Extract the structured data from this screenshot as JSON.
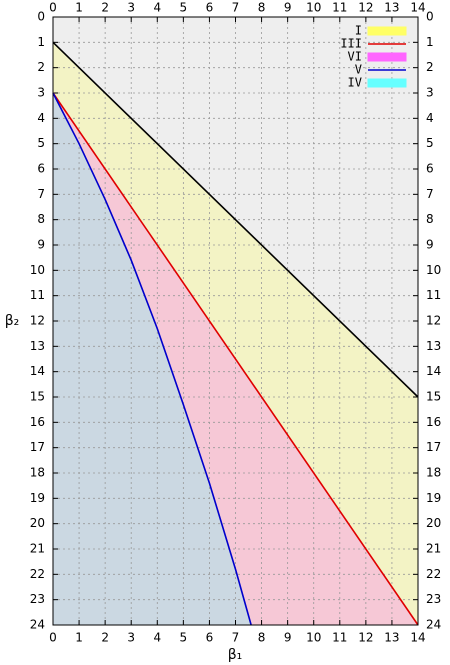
{
  "chart_data": {
    "type": "area",
    "xlabel": "β₁",
    "ylabel": "β₂",
    "xlim": [
      0,
      14
    ],
    "ylim": [
      24,
      0
    ],
    "xticks": [
      0,
      1,
      2,
      3,
      4,
      5,
      6,
      7,
      8,
      9,
      10,
      11,
      12,
      13,
      14
    ],
    "yticks": [
      0,
      1,
      2,
      3,
      4,
      5,
      6,
      7,
      8,
      9,
      10,
      11,
      12,
      13,
      14,
      15,
      16,
      17,
      18,
      19,
      20,
      21,
      22,
      23,
      24
    ],
    "grid": true,
    "background": "#eeeeee",
    "legend": "top-right",
    "series": [
      {
        "name": "I",
        "kind": "fill",
        "color": "#ffff66",
        "line_color": "#000000",
        "x": [
          0,
          14
        ],
        "values": [
          1,
          15
        ]
      },
      {
        "name": "III",
        "kind": "line",
        "color": "#e00000",
        "x": [
          0,
          14
        ],
        "values": [
          3,
          24
        ]
      },
      {
        "name": "VI",
        "kind": "fill",
        "color": "#ff66ff",
        "x": [
          0,
          14
        ],
        "values": [
          3,
          24
        ]
      },
      {
        "name": "V",
        "kind": "line",
        "color": "#0000cc",
        "x": [
          0,
          1,
          2,
          3,
          4,
          5,
          6,
          7,
          7.6
        ],
        "values": [
          3,
          5,
          7.2,
          9.6,
          12.3,
          15.3,
          18.4,
          21.8,
          24
        ]
      },
      {
        "name": "IV",
        "kind": "fill",
        "color": "#66ffff",
        "x": [
          0,
          1,
          2,
          3,
          4,
          5,
          6,
          7,
          7.6
        ],
        "values": [
          3,
          5,
          7.2,
          9.6,
          12.3,
          15.3,
          18.4,
          21.8,
          24
        ]
      }
    ]
  }
}
